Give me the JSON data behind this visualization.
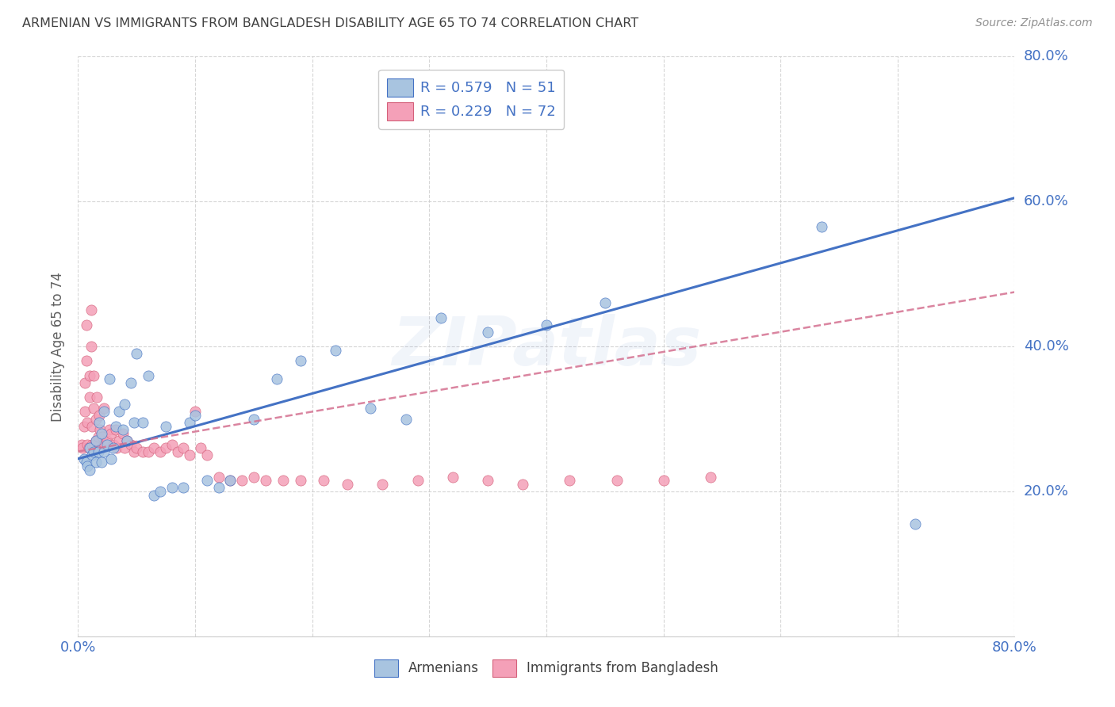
{
  "title": "ARMENIAN VS IMMIGRANTS FROM BANGLADESH DISABILITY AGE 65 TO 74 CORRELATION CHART",
  "source": "Source: ZipAtlas.com",
  "ylabel": "Disability Age 65 to 74",
  "watermark": "ZIPatlas",
  "xlim": [
    0.0,
    0.8
  ],
  "ylim": [
    0.0,
    0.8
  ],
  "R_armenian": 0.579,
  "N_armenian": 51,
  "R_bangladesh": 0.229,
  "N_bangladesh": 72,
  "color_armenian": "#a8c4e0",
  "color_bangladesh": "#f4a0b8",
  "line_color_armenian": "#4472c4",
  "line_color_bangladesh": "#d47090",
  "background_color": "#ffffff",
  "grid_color": "#cccccc",
  "title_color": "#404040",
  "source_color": "#909090",
  "arm_line_x": [
    0.0,
    0.8
  ],
  "arm_line_y": [
    0.245,
    0.605
  ],
  "ban_line_x": [
    0.0,
    0.8
  ],
  "ban_line_y": [
    0.255,
    0.475
  ],
  "armenian_x": [
    0.005,
    0.007,
    0.008,
    0.01,
    0.01,
    0.012,
    0.013,
    0.015,
    0.015,
    0.017,
    0.018,
    0.02,
    0.02,
    0.022,
    0.022,
    0.025,
    0.027,
    0.028,
    0.03,
    0.032,
    0.035,
    0.038,
    0.04,
    0.042,
    0.045,
    0.048,
    0.05,
    0.055,
    0.06,
    0.065,
    0.07,
    0.075,
    0.08,
    0.09,
    0.095,
    0.1,
    0.11,
    0.12,
    0.13,
    0.15,
    0.17,
    0.19,
    0.22,
    0.25,
    0.28,
    0.31,
    0.35,
    0.4,
    0.45,
    0.635,
    0.715
  ],
  "armenian_y": [
    0.245,
    0.24,
    0.235,
    0.23,
    0.26,
    0.25,
    0.255,
    0.24,
    0.27,
    0.255,
    0.295,
    0.24,
    0.28,
    0.255,
    0.31,
    0.265,
    0.355,
    0.245,
    0.26,
    0.29,
    0.31,
    0.285,
    0.32,
    0.27,
    0.35,
    0.295,
    0.39,
    0.295,
    0.36,
    0.195,
    0.2,
    0.29,
    0.205,
    0.205,
    0.295,
    0.305,
    0.215,
    0.205,
    0.215,
    0.3,
    0.355,
    0.38,
    0.395,
    0.315,
    0.3,
    0.44,
    0.42,
    0.43,
    0.46,
    0.565,
    0.155
  ],
  "bangladesh_x": [
    0.003,
    0.004,
    0.005,
    0.006,
    0.006,
    0.007,
    0.007,
    0.008,
    0.008,
    0.009,
    0.01,
    0.01,
    0.011,
    0.011,
    0.012,
    0.012,
    0.013,
    0.013,
    0.014,
    0.015,
    0.015,
    0.016,
    0.017,
    0.018,
    0.019,
    0.02,
    0.021,
    0.022,
    0.023,
    0.025,
    0.027,
    0.028,
    0.03,
    0.032,
    0.033,
    0.035,
    0.038,
    0.04,
    0.042,
    0.045,
    0.048,
    0.05,
    0.055,
    0.06,
    0.065,
    0.07,
    0.075,
    0.08,
    0.085,
    0.09,
    0.095,
    0.1,
    0.105,
    0.11,
    0.12,
    0.13,
    0.14,
    0.15,
    0.16,
    0.175,
    0.19,
    0.21,
    0.23,
    0.26,
    0.29,
    0.32,
    0.35,
    0.38,
    0.42,
    0.46,
    0.5,
    0.54
  ],
  "bangladesh_y": [
    0.265,
    0.26,
    0.29,
    0.31,
    0.35,
    0.38,
    0.43,
    0.265,
    0.295,
    0.26,
    0.33,
    0.36,
    0.4,
    0.45,
    0.265,
    0.29,
    0.315,
    0.36,
    0.265,
    0.27,
    0.3,
    0.33,
    0.275,
    0.305,
    0.285,
    0.26,
    0.275,
    0.315,
    0.265,
    0.27,
    0.285,
    0.28,
    0.265,
    0.285,
    0.26,
    0.27,
    0.28,
    0.26,
    0.27,
    0.265,
    0.255,
    0.26,
    0.255,
    0.255,
    0.26,
    0.255,
    0.26,
    0.265,
    0.255,
    0.26,
    0.25,
    0.31,
    0.26,
    0.25,
    0.22,
    0.215,
    0.215,
    0.22,
    0.215,
    0.215,
    0.215,
    0.215,
    0.21,
    0.21,
    0.215,
    0.22,
    0.215,
    0.21,
    0.215,
    0.215,
    0.215,
    0.22
  ]
}
